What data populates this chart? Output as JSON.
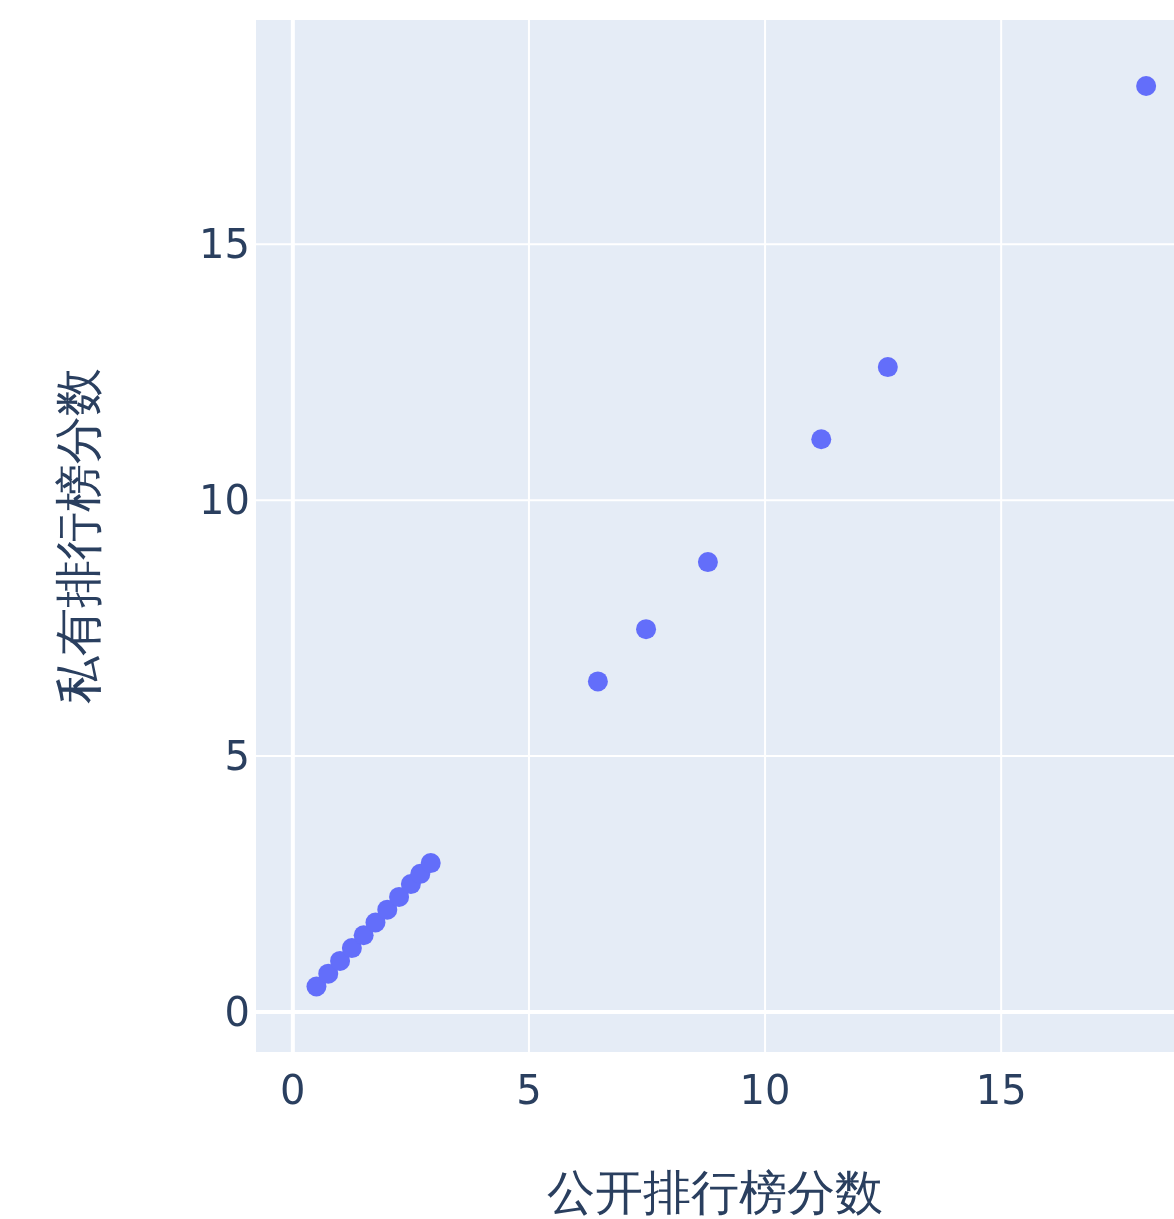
{
  "chart_data": {
    "type": "scatter",
    "xlabel": "公开排行榜分数",
    "ylabel": "私有排行榜分数",
    "xlim": [
      -0.78,
      18.66
    ],
    "ylim": [
      -0.78,
      19.38
    ],
    "xticks": [
      0,
      5,
      10,
      15
    ],
    "yticks": [
      0,
      5,
      10,
      15
    ],
    "grid": true,
    "marker": "circle",
    "series": [
      {
        "color": "#636efa",
        "x": [
          0.5,
          0.75,
          1.0,
          1.25,
          1.5,
          1.75,
          2.0,
          2.25,
          2.5,
          2.7,
          2.92,
          6.46,
          7.48,
          8.79,
          11.19,
          12.6,
          18.07
        ],
        "values": [
          0.5,
          0.75,
          1.0,
          1.25,
          1.5,
          1.75,
          2.0,
          2.25,
          2.5,
          2.7,
          2.91,
          6.46,
          7.48,
          8.79,
          11.19,
          12.6,
          18.09
        ]
      }
    ]
  }
}
